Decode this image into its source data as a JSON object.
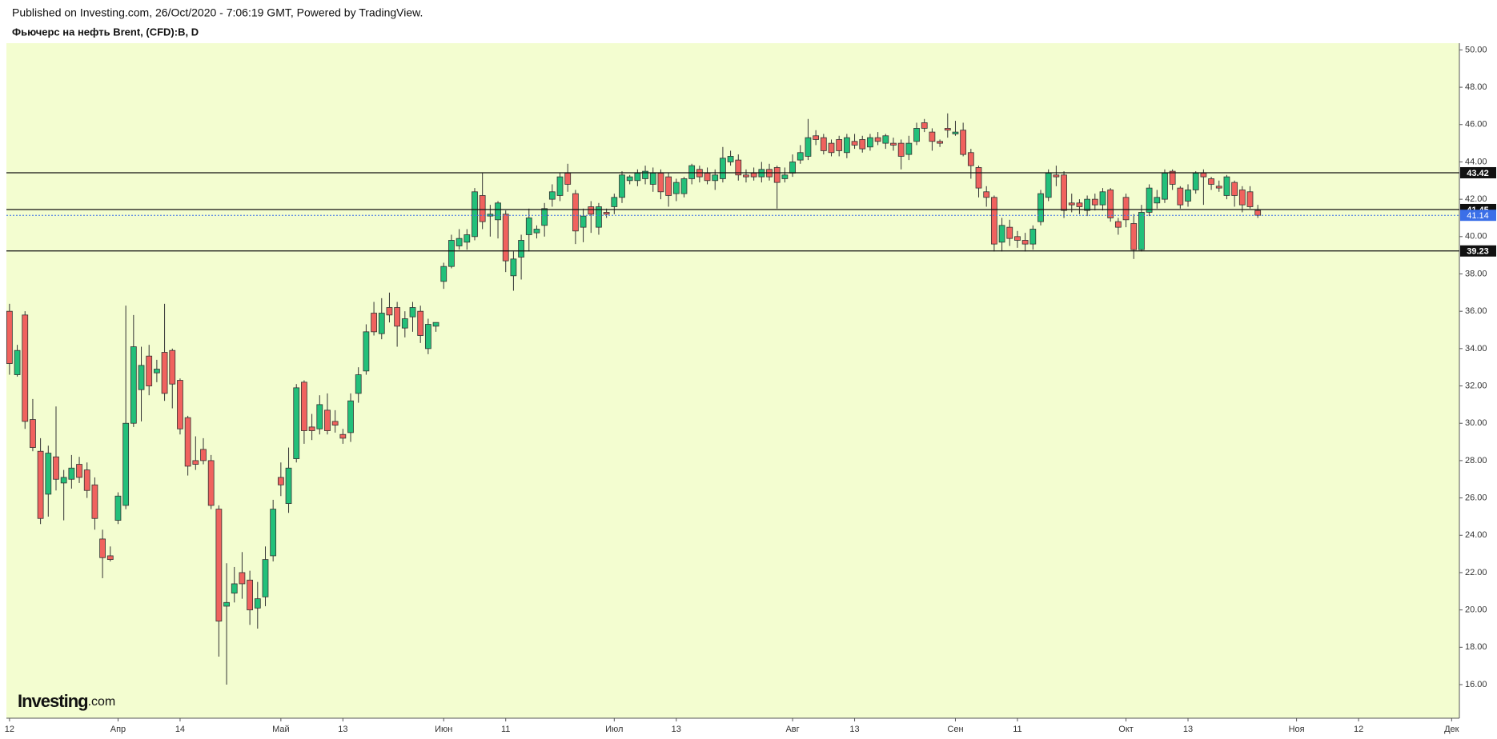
{
  "chart_data": {
    "type": "candlestick",
    "header": "Published on Investing.com, 26/Oct/2020 - 7:06:19 GMT, Powered by TradingView.",
    "title": "Фьючерс на нефть Brent, (CFD):B, D",
    "logo": "Investing",
    "logo_suffix": ".com",
    "up_color": "#22c07a",
    "down_color": "#f0625e",
    "background": "#f3fdd0",
    "xlim": [
      -0.4,
      187
    ],
    "xticks": [
      {
        "value": 0,
        "label": "12"
      },
      {
        "value": 14,
        "label": "Апр"
      },
      {
        "value": 22,
        "label": "14"
      },
      {
        "value": 35,
        "label": "Май"
      },
      {
        "value": 43,
        "label": "13"
      },
      {
        "value": 56,
        "label": "Июн"
      },
      {
        "value": 64,
        "label": "11"
      },
      {
        "value": 78,
        "label": "Июл"
      },
      {
        "value": 86,
        "label": "13"
      },
      {
        "value": 101,
        "label": "Авг"
      },
      {
        "value": 109,
        "label": "13"
      },
      {
        "value": 122,
        "label": "Сен"
      },
      {
        "value": 130,
        "label": "11"
      },
      {
        "value": 144,
        "label": "Окт"
      },
      {
        "value": 152,
        "label": "13"
      },
      {
        "value": 166,
        "label": "Ноя"
      },
      {
        "value": 174,
        "label": "12"
      },
      {
        "value": 186,
        "label": "Дек"
      }
    ],
    "ylim": [
      14.2,
      50.36
    ],
    "yticks": [
      {
        "value": 16,
        "label": "16.00"
      },
      {
        "value": 18,
        "label": "18.00"
      },
      {
        "value": 20,
        "label": "20.00"
      },
      {
        "value": 22,
        "label": "22.00"
      },
      {
        "value": 24,
        "label": "24.00"
      },
      {
        "value": 26,
        "label": "26.00"
      },
      {
        "value": 28,
        "label": "28.00"
      },
      {
        "value": 30,
        "label": "30.00"
      },
      {
        "value": 32,
        "label": "32.00"
      },
      {
        "value": 34,
        "label": "34.00"
      },
      {
        "value": 36,
        "label": "36.00"
      },
      {
        "value": 38,
        "label": "38.00"
      },
      {
        "value": 40,
        "label": "40.00"
      },
      {
        "value": 42,
        "label": "42.00"
      },
      {
        "value": 44,
        "label": "44.00"
      },
      {
        "value": 46,
        "label": "46.00"
      },
      {
        "value": 48,
        "label": "48.00"
      },
      {
        "value": 50,
        "label": "50.00"
      }
    ],
    "levels": [
      43.42,
      41.45,
      39.23
    ],
    "last_price": 41.14,
    "last_price_color": "#3b6fe8",
    "open": [
      36.0,
      32.6,
      35.8,
      30.2,
      28.5,
      26.2,
      28.2,
      26.8,
      27.0,
      27.8,
      27.5,
      26.7,
      23.8,
      22.9,
      24.8,
      25.6,
      30.0,
      31.8,
      33.6,
      32.7,
      33.8,
      33.9,
      32.3,
      30.3,
      28.0,
      28.6,
      28.0,
      25.4,
      20.2,
      20.9,
      22.0,
      21.6,
      20.1,
      20.7,
      22.9,
      27.1,
      25.7,
      28.1,
      32.2,
      29.8,
      29.7,
      30.7,
      30.1,
      29.4,
      29.5,
      31.6,
      32.8,
      35.9,
      34.8,
      36.2,
      36.2,
      35.1,
      35.7,
      36.0,
      34.0,
      35.2,
      37.6,
      38.4,
      39.5,
      39.7,
      40.0,
      42.2,
      41.1,
      40.9,
      41.2,
      37.9,
      38.9,
      40.1,
      40.2,
      40.6,
      42.0,
      42.2,
      43.4,
      42.3,
      40.5,
      41.6,
      40.5,
      41.3,
      41.6,
      42.1,
      43.0,
      43.0,
      43.1,
      42.8,
      43.4,
      43.2,
      42.3,
      42.3,
      43.1,
      43.6,
      43.4,
      43.0,
      43.1,
      44.0,
      44.1,
      43.3,
      43.4,
      43.2,
      43.6,
      43.7,
      43.1,
      43.4,
      44.1,
      44.3,
      45.4,
      45.3,
      45.0,
      45.2,
      44.5,
      45.1,
      45.2,
      44.8,
      45.3,
      45.0,
      45.0,
      45.0,
      44.4,
      45.1,
      46.1,
      45.6,
      45.1,
      45.8,
      45.5,
      45.7,
      44.5,
      43.7,
      42.4,
      42.1,
      39.7,
      40.5,
      40.0,
      39.8,
      39.6,
      40.8,
      42.1,
      43.3,
      43.3,
      41.8,
      41.8,
      41.4,
      42.0,
      41.7,
      42.5,
      40.8,
      42.1,
      40.7,
      39.3,
      41.3,
      41.8,
      42.0,
      43.5,
      42.6,
      41.9,
      42.5,
      43.4,
      43.1,
      42.7,
      42.2,
      42.9,
      42.5,
      42.4,
      41.4
    ],
    "high": [
      36.4,
      34.2,
      36.0,
      31.3,
      29.2,
      28.8,
      30.9,
      27.5,
      28.3,
      28.2,
      27.9,
      27.1,
      24.3,
      23.4,
      26.3,
      36.3,
      35.8,
      34.1,
      34.2,
      33.4,
      36.4,
      34.0,
      32.4,
      30.4,
      29.3,
      29.2,
      28.3,
      25.6,
      22.5,
      22.3,
      23.1,
      22.1,
      21.5,
      23.4,
      25.9,
      27.9,
      28.7,
      32.1,
      32.3,
      30.5,
      31.5,
      31.6,
      30.7,
      29.7,
      31.6,
      33.0,
      35.3,
      36.5,
      36.7,
      37.0,
      36.5,
      36.0,
      36.5,
      36.3,
      35.6,
      35.4,
      38.6,
      40.1,
      40.4,
      40.4,
      42.6,
      43.4,
      41.7,
      41.9,
      41.4,
      39.2,
      40.1,
      41.5,
      40.6,
      41.8,
      42.8,
      43.4,
      43.9,
      42.5,
      41.5,
      41.9,
      41.8,
      41.5,
      42.3,
      43.5,
      43.3,
      43.6,
      43.8,
      43.7,
      43.6,
      43.4,
      43.1,
      43.2,
      43.9,
      43.8,
      43.7,
      43.6,
      44.8,
      44.6,
      44.4,
      43.6,
      43.7,
      44.0,
      43.9,
      43.8,
      43.7,
      44.4,
      44.9,
      46.3,
      45.7,
      45.5,
      45.2,
      45.4,
      45.5,
      45.5,
      45.4,
      45.5,
      45.6,
      45.5,
      45.3,
      45.2,
      45.4,
      46.1,
      46.3,
      45.8,
      45.2,
      46.6,
      46.2,
      46.1,
      44.7,
      43.8,
      42.7,
      42.2,
      41.0,
      40.9,
      40.3,
      40.2,
      40.6,
      42.5,
      43.6,
      43.8,
      43.5,
      42.3,
      42.0,
      42.2,
      42.3,
      42.6,
      42.6,
      41.0,
      42.3,
      41.2,
      41.7,
      42.8,
      42.5,
      43.6,
      43.6,
      42.7,
      42.8,
      43.5,
      43.6,
      43.2,
      43.0,
      43.3,
      43.0,
      42.7,
      42.7,
      41.7
    ],
    "low": [
      32.6,
      32.5,
      29.7,
      28.5,
      24.6,
      25.0,
      26.4,
      24.8,
      26.5,
      26.8,
      26.0,
      24.3,
      21.7,
      22.6,
      24.6,
      25.4,
      29.8,
      30.1,
      31.5,
      32.2,
      31.2,
      30.8,
      29.4,
      27.2,
      27.5,
      27.8,
      25.4,
      17.5,
      16.0,
      20.4,
      20.6,
      19.2,
      19.0,
      20.2,
      22.6,
      26.1,
      25.2,
      27.9,
      28.9,
      29.1,
      29.4,
      29.4,
      29.5,
      28.9,
      29.0,
      31.1,
      32.6,
      34.7,
      34.5,
      35.4,
      34.1,
      34.6,
      34.9,
      34.3,
      33.7,
      34.9,
      37.2,
      38.3,
      39.3,
      39.3,
      39.8,
      40.4,
      40.0,
      39.9,
      38.1,
      37.1,
      37.7,
      39.2,
      39.9,
      40.0,
      41.6,
      41.9,
      42.4,
      39.6,
      39.7,
      40.2,
      40.1,
      41.0,
      41.2,
      41.8,
      42.8,
      42.7,
      42.8,
      42.4,
      42.0,
      41.6,
      41.9,
      42.1,
      42.8,
      42.9,
      42.8,
      42.5,
      42.9,
      43.8,
      43.0,
      42.9,
      43.0,
      42.9,
      43.0,
      41.5,
      42.9,
      43.2,
      43.9,
      44.1,
      44.9,
      44.4,
      44.3,
      44.3,
      44.2,
      44.7,
      44.5,
      44.6,
      44.9,
      44.7,
      44.6,
      43.6,
      44.1,
      44.9,
      45.6,
      44.6,
      44.8,
      45.3,
      45.4,
      44.3,
      43.1,
      42.1,
      41.6,
      39.2,
      39.2,
      39.5,
      39.4,
      39.2,
      39.3,
      40.6,
      41.9,
      42.7,
      41.0,
      41.3,
      41.2,
      41.1,
      41.4,
      41.4,
      40.8,
      40.1,
      40.5,
      38.8,
      39.2,
      41.1,
      41.5,
      41.8,
      42.5,
      41.5,
      41.6,
      42.3,
      41.7,
      42.5,
      42.4,
      42.0,
      41.6,
      41.3,
      41.5,
      41.0
    ],
    "close": [
      33.2,
      33.9,
      30.1,
      28.7,
      24.9,
      28.4,
      27.0,
      27.1,
      27.6,
      27.1,
      26.4,
      24.9,
      22.8,
      22.7,
      26.1,
      30.0,
      34.1,
      33.1,
      32.0,
      32.9,
      31.6,
      32.1,
      29.7,
      27.7,
      27.8,
      28.0,
      25.6,
      19.4,
      20.4,
      21.4,
      21.4,
      20.0,
      20.6,
      22.7,
      25.4,
      26.7,
      27.6,
      31.9,
      29.6,
      29.6,
      31.0,
      29.6,
      29.9,
      29.2,
      31.2,
      32.6,
      34.9,
      34.9,
      35.9,
      35.8,
      35.2,
      35.6,
      36.2,
      34.7,
      35.3,
      35.4,
      38.4,
      39.8,
      39.9,
      40.1,
      42.4,
      40.8,
      41.2,
      41.8,
      38.7,
      38.8,
      39.8,
      41.0,
      40.4,
      41.5,
      42.4,
      43.2,
      42.8,
      40.3,
      41.1,
      41.2,
      41.6,
      41.2,
      42.1,
      43.3,
      43.2,
      43.4,
      43.5,
      43.4,
      42.4,
      42.2,
      42.9,
      43.1,
      43.8,
      43.2,
      43.0,
      43.3,
      44.2,
      44.3,
      43.3,
      43.2,
      43.2,
      43.6,
      43.2,
      42.9,
      43.3,
      44.0,
      44.5,
      45.3,
      45.2,
      44.6,
      44.5,
      44.6,
      45.3,
      44.9,
      44.7,
      45.3,
      45.1,
      45.4,
      44.9,
      44.3,
      45.0,
      45.8,
      45.8,
      45.1,
      45.0,
      45.7,
      45.6,
      44.4,
      43.8,
      42.6,
      42.1,
      39.6,
      40.6,
      39.9,
      39.8,
      39.6,
      40.4,
      42.3,
      43.4,
      43.2,
      41.4,
      41.7,
      41.6,
      42.0,
      41.7,
      42.4,
      41.0,
      40.5,
      40.9,
      39.3,
      41.3,
      42.6,
      42.1,
      43.4,
      42.8,
      41.7,
      42.5,
      43.4,
      43.2,
      42.8,
      42.6,
      43.2,
      42.2,
      41.7,
      41.6,
      41.14
    ]
  }
}
